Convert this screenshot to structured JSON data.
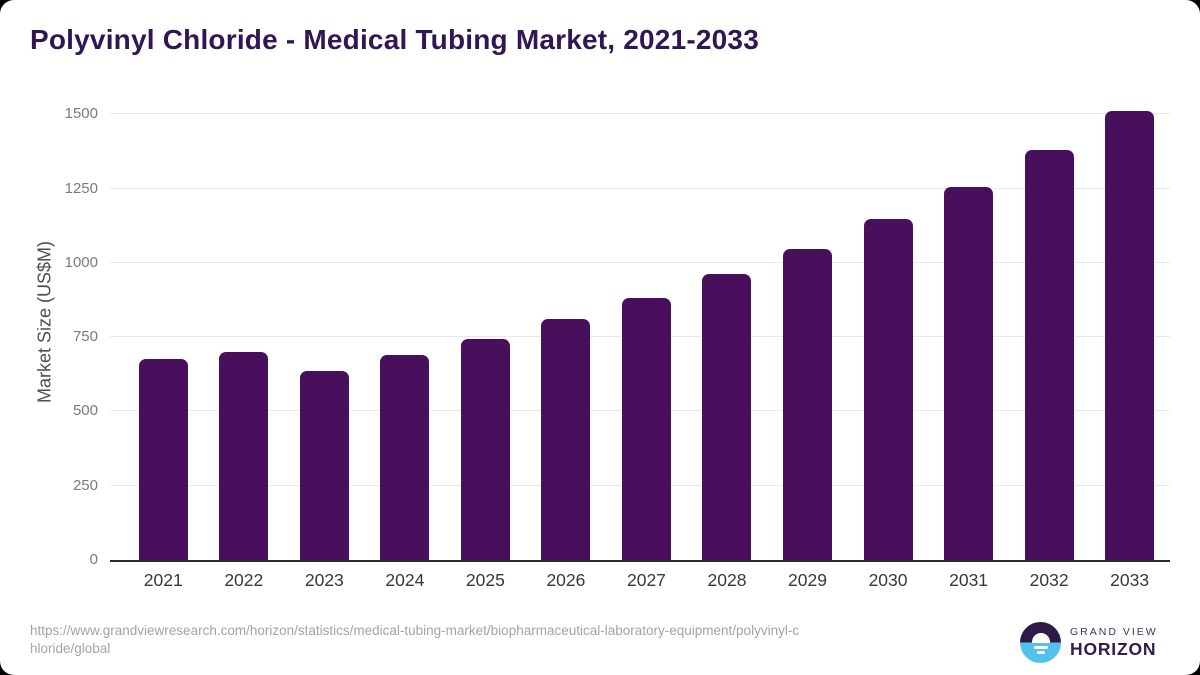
{
  "title": "Polyvinyl Chloride - Medical Tubing Market, 2021-2033",
  "chart_data": {
    "type": "bar",
    "title": "Polyvinyl Chloride - Medical Tubing Market, 2021-2033",
    "categories": [
      "2021",
      "2022",
      "2023",
      "2024",
      "2025",
      "2026",
      "2027",
      "2028",
      "2029",
      "2030",
      "2031",
      "2032",
      "2033"
    ],
    "values": [
      678,
      700,
      637,
      689,
      745,
      812,
      882,
      961,
      1046,
      1149,
      1256,
      1379,
      1510
    ],
    "xlabel": "",
    "ylabel": "Market Size (US$M)",
    "ylim": [
      0,
      1550
    ],
    "yticks": [
      0,
      250,
      500,
      750,
      1000,
      1250,
      1500
    ],
    "grid": true,
    "legend": "none",
    "bar_color": "#48105C",
    "gridline_color": "#e9e9e9",
    "axis_line_color": "#2b2b2b"
  },
  "footer": {
    "source_url_line1": "https://www.grandviewresearch.com/horizon/statistics/medical-tubing-market/biopharmaceutical-laboratory-equipment/polyvinyl-c",
    "source_url_line2": "hloride/global",
    "logo": {
      "brand_top": "GRAND VIEW",
      "brand_bottom": "HORIZON",
      "mark_top_color": "#2E1A47",
      "mark_bottom_color": "#54C0EC"
    }
  },
  "colors": {
    "title": "#321653",
    "bar": "#48105C",
    "tick_label": "#7a7a7a",
    "x_label": "#383838",
    "url_text": "#a3a3a3"
  }
}
